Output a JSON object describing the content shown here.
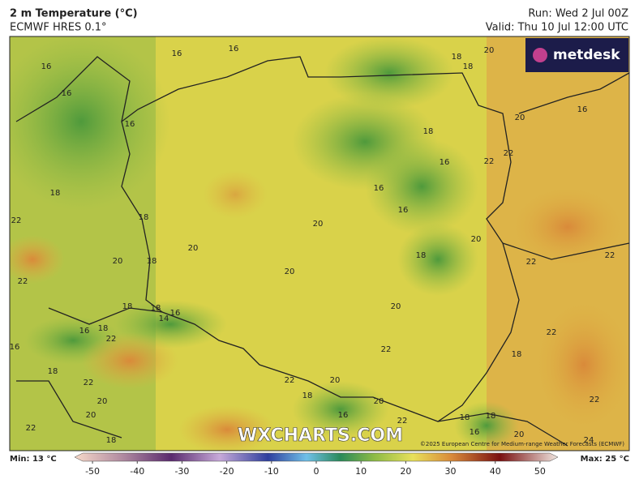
{
  "header": {
    "title": "2 m Temperature (°C)",
    "model": "ECMWF HRES 0.1°",
    "run": "Run: Wed 2 Jul 00Z",
    "valid": "Valid: Thu 10 Jul 12:00 UTC"
  },
  "logo": "metdesk",
  "watermark": "WXCHARTS.COM",
  "copyright": "©2025 European Centre for Medium-range Weather Forecasts (ECMWF)",
  "map_labels": [
    16,
    16,
    16,
    16,
    16,
    18,
    18,
    20,
    16,
    20,
    18,
    22,
    16,
    22,
    18,
    16,
    16,
    22,
    18,
    20,
    20,
    20,
    20,
    18,
    18,
    22,
    22,
    22,
    20,
    18,
    18,
    16,
    14,
    20,
    16,
    18,
    22,
    22,
    16,
    18,
    22,
    18,
    22,
    22,
    20,
    18,
    20,
    20,
    22,
    22,
    20,
    16,
    22,
    18,
    18,
    18,
    16,
    24,
    20
  ],
  "colorbar": {
    "min_label": "Min: 13 °C",
    "max_label": "Max: 25 °C",
    "lim": [
      -54,
      54
    ],
    "ticks": [
      -50,
      -40,
      -30,
      -20,
      -10,
      0,
      10,
      20,
      30,
      40,
      50
    ]
  }
}
